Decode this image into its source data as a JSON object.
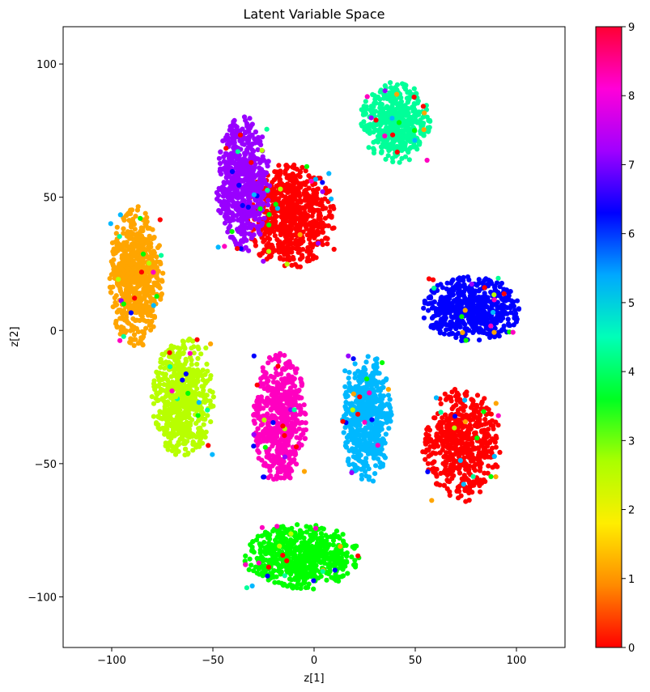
{
  "chart_data": {
    "type": "scatter",
    "title": "Latent Variable Space",
    "xlabel": "z[1]",
    "ylabel": "z[2]",
    "xlim": [
      -124,
      124
    ],
    "ylim": [
      -119,
      114
    ],
    "xticks": [
      -100,
      -50,
      0,
      50,
      100
    ],
    "yticks": [
      -100,
      -50,
      0,
      50,
      100
    ],
    "grid": false,
    "colormap": "hsv",
    "colorbar": {
      "range": [
        0,
        9
      ],
      "ticks": [
        0,
        1,
        2,
        3,
        4,
        5,
        6,
        7,
        8,
        9
      ],
      "stops": [
        "#ff0000",
        "#ff8a00",
        "#ffee00",
        "#aaff00",
        "#00ff22",
        "#00ffb8",
        "#00a8ff",
        "#0000ff",
        "#a000ff",
        "#ff00d8",
        "#ff0033"
      ]
    },
    "clusters": [
      {
        "label": 0,
        "color": "#ff0000",
        "center": [
          -12,
          43
        ],
        "spread": [
          22,
          20
        ],
        "count": 650
      },
      {
        "label": 0,
        "color": "#ff0000",
        "center": [
          73,
          -43
        ],
        "spread": [
          19,
          21
        ],
        "count": 520
      },
      {
        "label": 1,
        "color": "#ffa500",
        "center": [
          -88,
          20
        ],
        "spread": [
          13,
          26
        ],
        "count": 640
      },
      {
        "label": 2,
        "color": "#b8ff00",
        "center": [
          -65,
          -25
        ],
        "spread": [
          15,
          22
        ],
        "count": 600
      },
      {
        "label": 3,
        "color": "#00ff00",
        "center": [
          -6,
          -85
        ],
        "spread": [
          28,
          12
        ],
        "count": 620
      },
      {
        "label": 4,
        "color": "#00ff99",
        "center": [
          40,
          78
        ],
        "spread": [
          17,
          15
        ],
        "count": 480
      },
      {
        "label": 5,
        "color": "#00b8ff",
        "center": [
          26,
          -33
        ],
        "spread": [
          12,
          24
        ],
        "count": 540
      },
      {
        "label": 6,
        "color": "#0000ff",
        "center": [
          78,
          8
        ],
        "spread": [
          24,
          12
        ],
        "count": 560
      },
      {
        "label": 7,
        "color": "#9900ff",
        "center": [
          -35,
          55
        ],
        "spread": [
          13,
          25
        ],
        "count": 600
      },
      {
        "label": 8,
        "color": "#ff00c0",
        "center": [
          -17,
          -33
        ],
        "spread": [
          13,
          24
        ],
        "count": 560
      }
    ]
  }
}
